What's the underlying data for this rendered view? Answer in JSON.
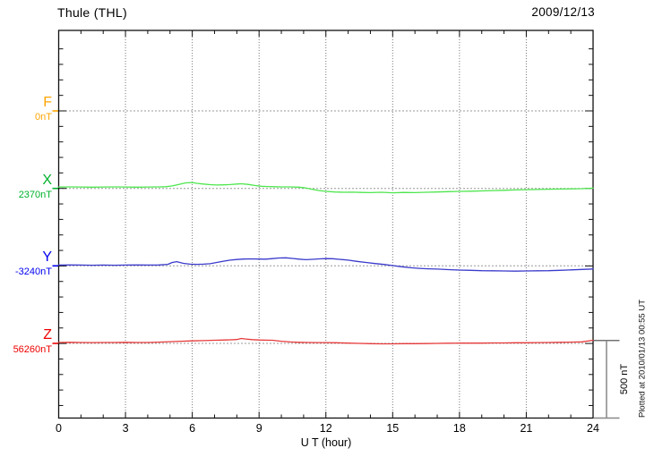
{
  "header": {
    "title": "Thule (THL)",
    "date": "2009/12/13"
  },
  "axis": {
    "xlabel": "U T (hour)"
  },
  "scale_bar": {
    "label": "500 nT",
    "span_nT": 500
  },
  "plotted_note": "Plotted at 2010/01/13 00:55 UT",
  "components": [
    {
      "id": "F",
      "label": "F",
      "value_label": "0nT",
      "baseline_nT": 0,
      "color": "#FFA500",
      "trace_color": "#FFB320"
    },
    {
      "id": "X",
      "label": "X",
      "value_label": "2370nT",
      "baseline_nT": 2370,
      "color": "#00B22D",
      "trace_color": "#4DE64D"
    },
    {
      "id": "Y",
      "label": "Y",
      "value_label": "-3240nT",
      "baseline_nT": -3240,
      "color": "#0000EE",
      "trace_color": "#3A3ACC"
    },
    {
      "id": "Z",
      "label": "Z",
      "value_label": "56260nT",
      "baseline_nT": 56260,
      "color": "#EE0000",
      "trace_color": "#E63939"
    }
  ],
  "chart_data": {
    "type": "line",
    "title": "Thule (THL)",
    "subtitle": "2009/12/13",
    "xlabel": "U T (hour)",
    "x_range": [
      0,
      24
    ],
    "x_ticks": [
      0,
      3,
      6,
      9,
      12,
      15,
      18,
      21,
      24
    ],
    "x_minor_step_hours": 1,
    "grid": "dotted vertical every 3 h, dotted horizontal at each component baseline",
    "y_scale_nT_per_division": 100,
    "baseline_spacing_nT": 500,
    "scale_bar_nT": 500,
    "legend_position": "left margin (component letters with baseline values)",
    "series": [
      {
        "name": "F",
        "baseline_nT": 0,
        "units": "nT",
        "points": []
      },
      {
        "name": "X",
        "baseline_nT": 2370,
        "units": "nT",
        "points": [
          [
            0,
            9
          ],
          [
            0.5,
            10
          ],
          [
            1,
            9
          ],
          [
            1.5,
            8
          ],
          [
            2,
            9
          ],
          [
            2.5,
            10
          ],
          [
            3,
            9
          ],
          [
            3.5,
            8
          ],
          [
            4,
            9
          ],
          [
            4.5,
            10
          ],
          [
            4.8,
            11
          ],
          [
            5.1,
            16
          ],
          [
            5.4,
            26
          ],
          [
            5.7,
            36
          ],
          [
            6,
            38
          ],
          [
            6.2,
            33
          ],
          [
            6.5,
            28
          ],
          [
            6.8,
            24
          ],
          [
            7.1,
            22
          ],
          [
            7.4,
            23
          ],
          [
            7.7,
            25
          ],
          [
            8,
            28
          ],
          [
            8.2,
            30
          ],
          [
            8.5,
            26
          ],
          [
            8.8,
            19
          ],
          [
            9.1,
            14
          ],
          [
            9.4,
            12
          ],
          [
            9.7,
            11
          ],
          [
            10,
            10
          ],
          [
            10.4,
            10
          ],
          [
            10.8,
            8
          ],
          [
            11.1,
            3
          ],
          [
            11.4,
            -6
          ],
          [
            11.7,
            -14
          ],
          [
            12,
            -19
          ],
          [
            12.4,
            -23
          ],
          [
            12.8,
            -25
          ],
          [
            13.2,
            -24
          ],
          [
            13.6,
            -26
          ],
          [
            14,
            -27
          ],
          [
            14.5,
            -25
          ],
          [
            15,
            -28
          ],
          [
            15.5,
            -26
          ],
          [
            16,
            -27
          ],
          [
            16.5,
            -25
          ],
          [
            17,
            -23
          ],
          [
            17.5,
            -21
          ],
          [
            18,
            -19
          ],
          [
            18.5,
            -18
          ],
          [
            19,
            -16
          ],
          [
            19.5,
            -14
          ],
          [
            20,
            -12
          ],
          [
            20.5,
            -10
          ],
          [
            21,
            -8
          ],
          [
            21.5,
            -7
          ],
          [
            22,
            -5
          ],
          [
            22.5,
            -4
          ],
          [
            23,
            -3
          ],
          [
            23.5,
            -2
          ],
          [
            24,
            2
          ]
        ]
      },
      {
        "name": "Y",
        "baseline_nT": -3240,
        "units": "nT",
        "points": [
          [
            0,
            5
          ],
          [
            0.5,
            6
          ],
          [
            1,
            5
          ],
          [
            1.5,
            4
          ],
          [
            2,
            5
          ],
          [
            2.5,
            4
          ],
          [
            3,
            5
          ],
          [
            3.5,
            6
          ],
          [
            4,
            5
          ],
          [
            4.5,
            6
          ],
          [
            4.9,
            10
          ],
          [
            5.1,
            22
          ],
          [
            5.3,
            27
          ],
          [
            5.6,
            16
          ],
          [
            5.9,
            11
          ],
          [
            6.2,
            10
          ],
          [
            6.5,
            11
          ],
          [
            6.8,
            14
          ],
          [
            7.1,
            22
          ],
          [
            7.4,
            30
          ],
          [
            7.7,
            37
          ],
          [
            8,
            41
          ],
          [
            8.3,
            44
          ],
          [
            8.6,
            45
          ],
          [
            9,
            44
          ],
          [
            9.3,
            43
          ],
          [
            9.6,
            47
          ],
          [
            9.9,
            51
          ],
          [
            10.2,
            52
          ],
          [
            10.5,
            48
          ],
          [
            10.8,
            43
          ],
          [
            11.1,
            40
          ],
          [
            11.4,
            42
          ],
          [
            11.7,
            45
          ],
          [
            12,
            47
          ],
          [
            12.3,
            46
          ],
          [
            12.6,
            42
          ],
          [
            13,
            37
          ],
          [
            13.4,
            29
          ],
          [
            13.8,
            22
          ],
          [
            14.2,
            15
          ],
          [
            14.6,
            9
          ],
          [
            15,
            2
          ],
          [
            15.4,
            -6
          ],
          [
            15.8,
            -12
          ],
          [
            16.2,
            -16
          ],
          [
            16.6,
            -19
          ],
          [
            17,
            -21
          ],
          [
            17.5,
            -24
          ],
          [
            18,
            -27
          ],
          [
            18.5,
            -29
          ],
          [
            19,
            -31
          ],
          [
            19.5,
            -32
          ],
          [
            20,
            -33
          ],
          [
            20.5,
            -34
          ],
          [
            21,
            -33
          ],
          [
            21.5,
            -32
          ],
          [
            22,
            -31
          ],
          [
            22.5,
            -29
          ],
          [
            23,
            -26
          ],
          [
            23.5,
            -23
          ],
          [
            24,
            -20
          ]
        ]
      },
      {
        "name": "Z",
        "baseline_nT": 56260,
        "units": "nT",
        "points": [
          [
            0,
            6
          ],
          [
            0.5,
            7
          ],
          [
            1,
            6
          ],
          [
            1.5,
            5
          ],
          [
            2,
            6
          ],
          [
            2.5,
            6
          ],
          [
            3,
            7
          ],
          [
            3.5,
            6
          ],
          [
            4,
            6
          ],
          [
            4.5,
            8
          ],
          [
            5,
            11
          ],
          [
            5.5,
            14
          ],
          [
            6,
            16
          ],
          [
            6.5,
            18
          ],
          [
            7,
            20
          ],
          [
            7.5,
            22
          ],
          [
            8,
            25
          ],
          [
            8.2,
            32
          ],
          [
            8.4,
            28
          ],
          [
            8.7,
            24
          ],
          [
            9,
            22
          ],
          [
            9.3,
            21
          ],
          [
            9.6,
            20
          ],
          [
            10,
            14
          ],
          [
            10.4,
            9
          ],
          [
            10.8,
            7
          ],
          [
            11.2,
            6
          ],
          [
            11.6,
            5
          ],
          [
            12,
            5
          ],
          [
            12.5,
            4
          ],
          [
            13,
            2
          ],
          [
            13.5,
            0
          ],
          [
            14,
            -2
          ],
          [
            14.5,
            -3
          ],
          [
            15,
            -3
          ],
          [
            15.5,
            -2
          ],
          [
            16,
            -2
          ],
          [
            16.5,
            -1
          ],
          [
            17,
            0
          ],
          [
            17.5,
            1
          ],
          [
            18,
            2
          ],
          [
            18.5,
            2
          ],
          [
            19,
            2
          ],
          [
            19.5,
            3
          ],
          [
            20,
            3
          ],
          [
            20.5,
            4
          ],
          [
            21,
            4
          ],
          [
            21.5,
            5
          ],
          [
            22,
            6
          ],
          [
            22.5,
            7
          ],
          [
            23,
            8
          ],
          [
            23.5,
            10
          ],
          [
            24,
            20
          ]
        ]
      }
    ]
  }
}
